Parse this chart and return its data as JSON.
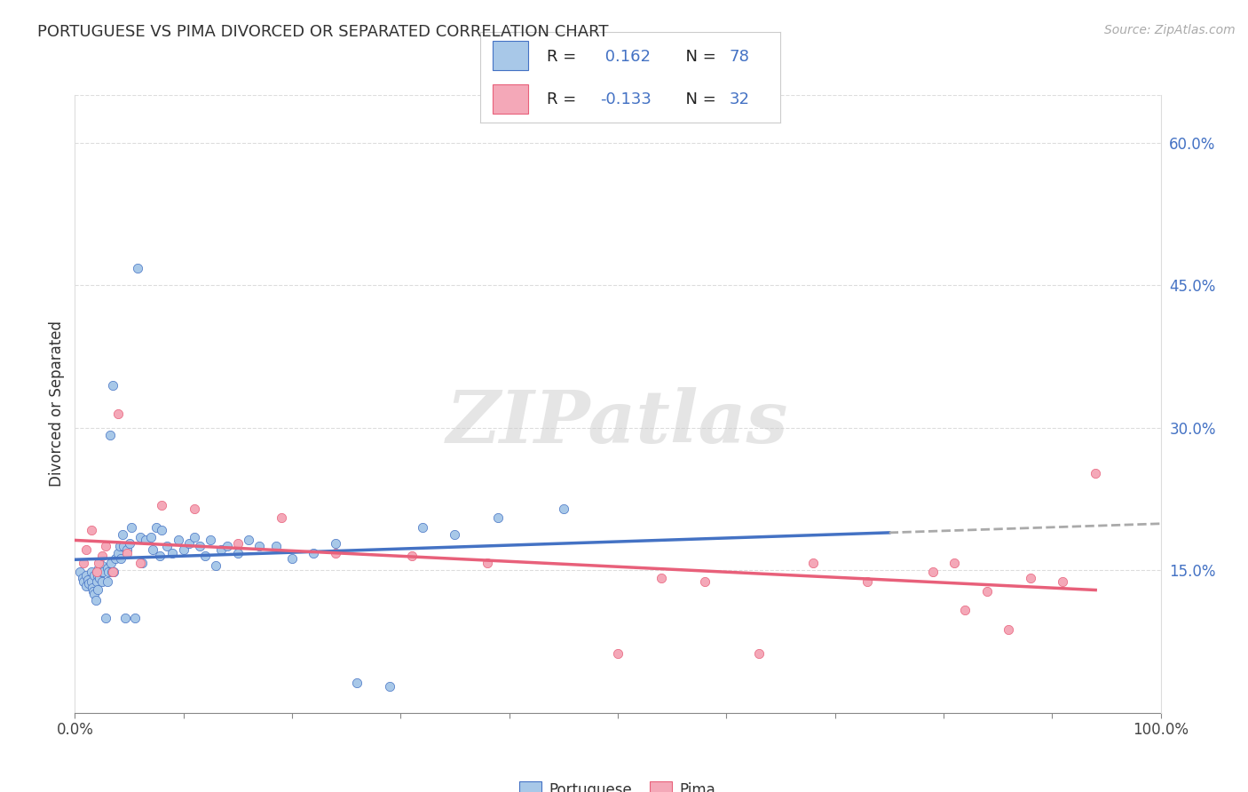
{
  "title": "PORTUGUESE VS PIMA DIVORCED OR SEPARATED CORRELATION CHART",
  "source": "Source: ZipAtlas.com",
  "ylabel": "Divorced or Separated",
  "xlim": [
    0,
    1.0
  ],
  "ylim": [
    0,
    0.65
  ],
  "xtick_positions": [
    0.0,
    0.2,
    0.4,
    0.5,
    0.6,
    0.8,
    1.0
  ],
  "xtick_labels_sparse": {
    "0.0": "0.0%",
    "1.0": "100.0%"
  },
  "yticks_right": [
    0.15,
    0.3,
    0.45,
    0.6
  ],
  "ytick_right_labels": [
    "15.0%",
    "30.0%",
    "45.0%",
    "60.0%"
  ],
  "portuguese_color": "#a8c8e8",
  "pima_color": "#f4a8b8",
  "portuguese_line_color": "#4472c4",
  "pima_line_color": "#e8607a",
  "trend_ext_color": "#aaaaaa",
  "legend_text_color": "#4472c4",
  "R_portuguese": 0.162,
  "N_portuguese": 78,
  "R_pima": -0.133,
  "N_pima": 32,
  "legend_labels": [
    "Portuguese",
    "Pima"
  ],
  "portuguese_x": [
    0.005,
    0.007,
    0.008,
    0.01,
    0.01,
    0.012,
    0.013,
    0.015,
    0.015,
    0.016,
    0.017,
    0.018,
    0.018,
    0.019,
    0.02,
    0.02,
    0.021,
    0.021,
    0.022,
    0.023,
    0.024,
    0.025,
    0.025,
    0.026,
    0.028,
    0.03,
    0.03,
    0.031,
    0.032,
    0.033,
    0.034,
    0.035,
    0.036,
    0.037,
    0.04,
    0.041,
    0.042,
    0.044,
    0.045,
    0.046,
    0.048,
    0.05,
    0.052,
    0.055,
    0.058,
    0.06,
    0.062,
    0.065,
    0.07,
    0.072,
    0.075,
    0.078,
    0.08,
    0.085,
    0.09,
    0.095,
    0.1,
    0.105,
    0.11,
    0.115,
    0.12,
    0.125,
    0.13,
    0.135,
    0.14,
    0.15,
    0.16,
    0.17,
    0.185,
    0.2,
    0.22,
    0.24,
    0.26,
    0.29,
    0.32,
    0.35,
    0.39,
    0.45
  ],
  "portuguese_y": [
    0.148,
    0.142,
    0.138,
    0.145,
    0.133,
    0.14,
    0.136,
    0.148,
    0.138,
    0.132,
    0.128,
    0.145,
    0.125,
    0.118,
    0.148,
    0.138,
    0.145,
    0.13,
    0.152,
    0.142,
    0.148,
    0.155,
    0.138,
    0.148,
    0.1,
    0.152,
    0.138,
    0.148,
    0.292,
    0.158,
    0.148,
    0.345,
    0.148,
    0.162,
    0.168,
    0.175,
    0.162,
    0.188,
    0.175,
    0.1,
    0.172,
    0.178,
    0.195,
    0.1,
    0.468,
    0.185,
    0.158,
    0.182,
    0.185,
    0.172,
    0.195,
    0.165,
    0.192,
    0.175,
    0.168,
    0.182,
    0.172,
    0.178,
    0.185,
    0.175,
    0.165,
    0.182,
    0.155,
    0.172,
    0.175,
    0.168,
    0.182,
    0.175,
    0.175,
    0.162,
    0.168,
    0.178,
    0.032,
    0.028,
    0.195,
    0.188,
    0.205,
    0.215
  ],
  "pima_x": [
    0.008,
    0.01,
    0.015,
    0.02,
    0.022,
    0.025,
    0.028,
    0.035,
    0.04,
    0.048,
    0.06,
    0.08,
    0.11,
    0.15,
    0.19,
    0.24,
    0.31,
    0.38,
    0.5,
    0.54,
    0.58,
    0.63,
    0.68,
    0.73,
    0.79,
    0.81,
    0.82,
    0.84,
    0.86,
    0.88,
    0.91,
    0.94
  ],
  "pima_y": [
    0.158,
    0.172,
    0.192,
    0.148,
    0.158,
    0.165,
    0.175,
    0.148,
    0.315,
    0.168,
    0.158,
    0.218,
    0.215,
    0.178,
    0.205,
    0.168,
    0.165,
    0.158,
    0.062,
    0.142,
    0.138,
    0.062,
    0.158,
    0.138,
    0.148,
    0.158,
    0.108,
    0.128,
    0.088,
    0.142,
    0.138,
    0.252
  ],
  "watermark": "ZIPatlas",
  "grid_color": "#dddddd",
  "grid_style": "--"
}
